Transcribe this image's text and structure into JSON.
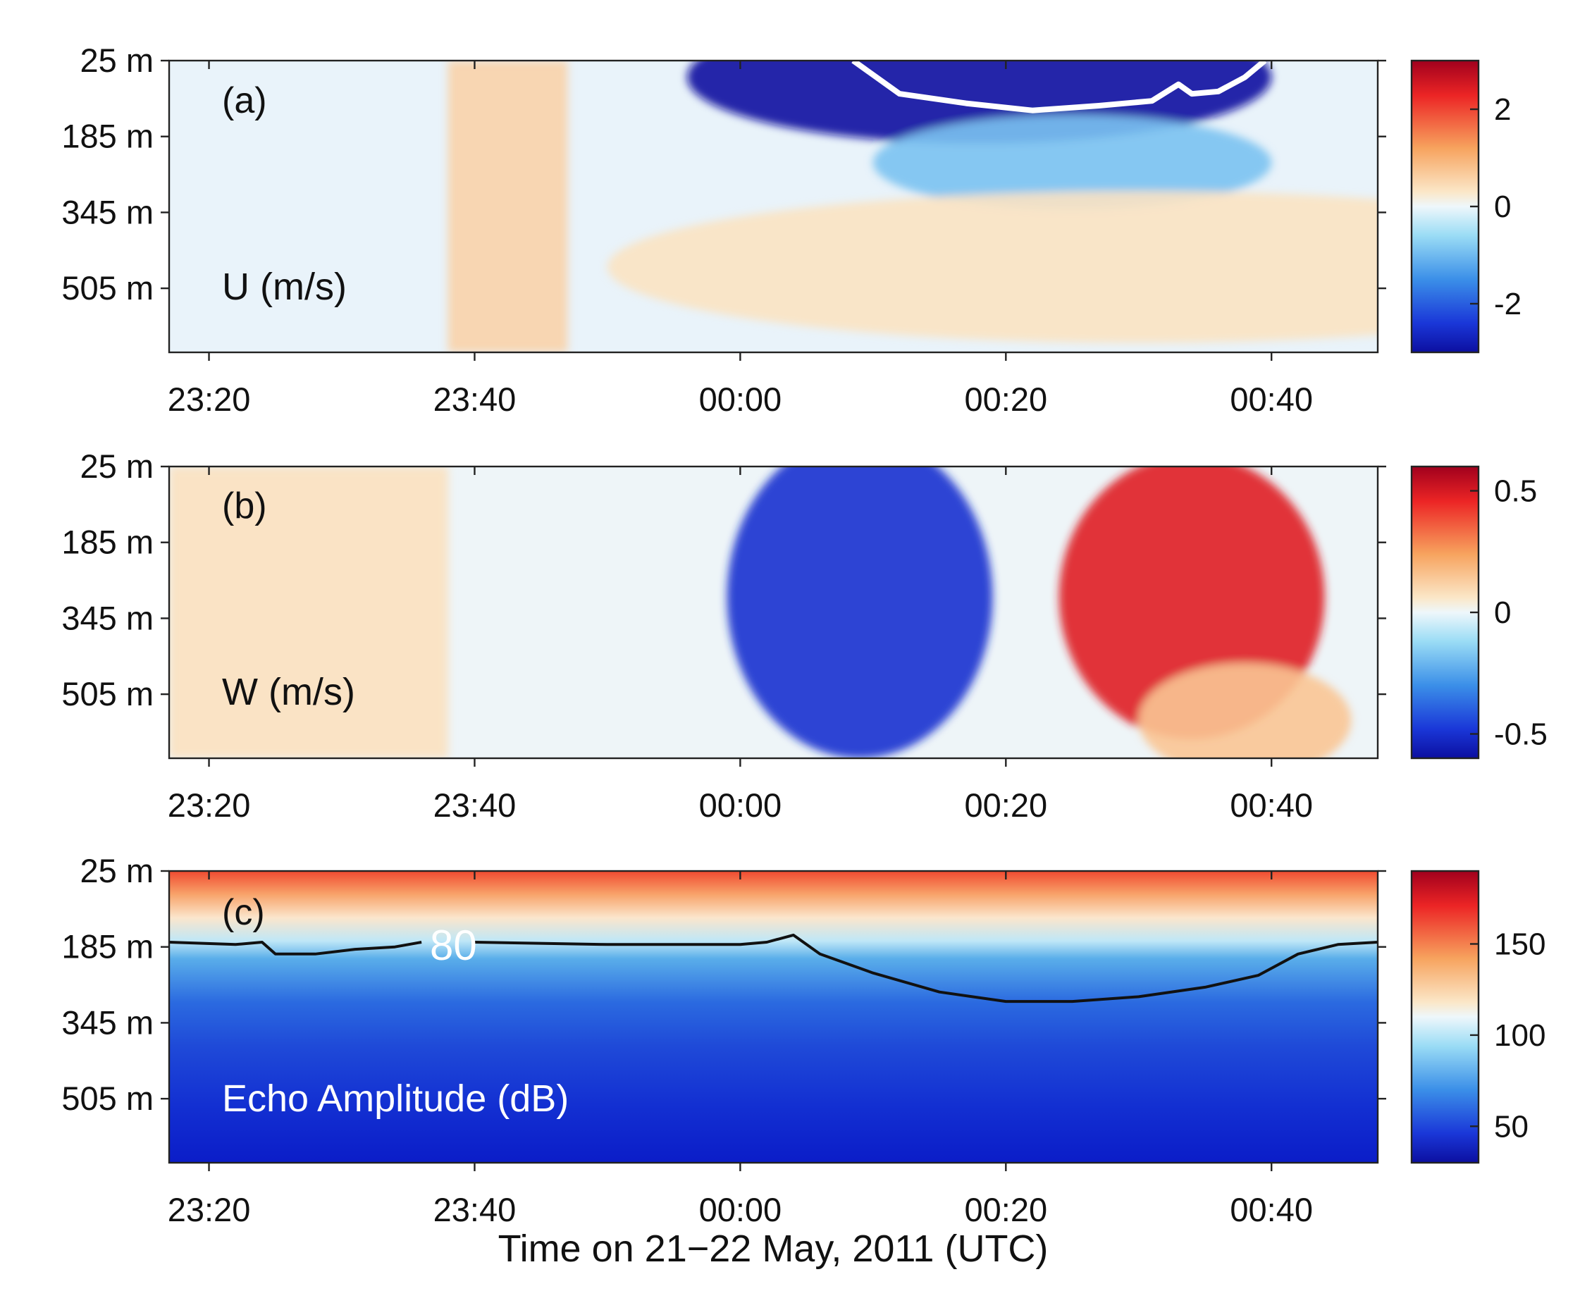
{
  "chart_data": {
    "type": "heatmap",
    "xlabel": "Time on 21−22 May, 2011 (UTC)",
    "x_ticks": [
      "23:20",
      "23:40",
      "00:00",
      "00:20",
      "00:40"
    ],
    "x_tick_minutes": [
      -40,
      -20,
      0,
      20,
      40
    ],
    "xlim_minutes": [
      -43,
      48
    ],
    "y_ticks": [
      "25 m",
      "185 m",
      "345 m",
      "505 m"
    ],
    "y_tick_values": [
      25,
      185,
      345,
      505
    ],
    "ylim": [
      25,
      640
    ],
    "panels": [
      {
        "tag": "(a)",
        "variable_label": "U (m/s)",
        "colormap": "blue-white-red",
        "clim": [
          -3,
          3
        ],
        "colorbar_ticks": [
          "2",
          "0",
          "-2"
        ],
        "colorbar_tick_values": [
          2,
          0,
          -2
        ],
        "contour_color": "#ffffff",
        "contour_value": -2,
        "contour_label": "",
        "features": [
          {
            "kind": "band",
            "t_start": -22,
            "t_end": -13,
            "value": 0.6
          },
          {
            "kind": "blob",
            "t_center": 18,
            "depth_center": 60,
            "t_halfwidth": 22,
            "depth_halfwidth": 140,
            "value": -3.2
          },
          {
            "kind": "blob",
            "t_center": 25,
            "depth_center": 240,
            "t_halfwidth": 15,
            "depth_halfwidth": 100,
            "value": -0.9
          },
          {
            "kind": "blob",
            "t_center": 30,
            "depth_center": 460,
            "t_halfwidth": 40,
            "depth_halfwidth": 160,
            "value": 0.35
          }
        ],
        "contour_points": [
          {
            "t": 8.5,
            "depth": 25
          },
          {
            "t": 12,
            "depth": 95
          },
          {
            "t": 17,
            "depth": 115
          },
          {
            "t": 22,
            "depth": 130
          },
          {
            "t": 27,
            "depth": 120
          },
          {
            "t": 31,
            "depth": 110
          },
          {
            "t": 33,
            "depth": 75
          },
          {
            "t": 34,
            "depth": 95
          },
          {
            "t": 36,
            "depth": 90
          },
          {
            "t": 38,
            "depth": 60
          },
          {
            "t": 39.5,
            "depth": 25
          }
        ]
      },
      {
        "tag": "(b)",
        "variable_label": "W (m/s)",
        "colormap": "blue-white-red",
        "clim": [
          -0.6,
          0.6
        ],
        "colorbar_ticks": [
          "0.5",
          "0",
          "-0.5"
        ],
        "colorbar_tick_values": [
          0.5,
          0,
          -0.5
        ],
        "features": [
          {
            "kind": "band",
            "t_start": -43,
            "t_end": -22,
            "value": 0.08
          },
          {
            "kind": "blob",
            "t_center": 9,
            "depth_center": 300,
            "t_halfwidth": 10,
            "depth_halfwidth": 340,
            "value": -0.5
          },
          {
            "kind": "blob",
            "t_center": 34,
            "depth_center": 300,
            "t_halfwidth": 10,
            "depth_halfwidth": 300,
            "value": 0.48
          },
          {
            "kind": "blob",
            "t_center": 38,
            "depth_center": 560,
            "t_halfwidth": 8,
            "depth_halfwidth": 120,
            "value": 0.15
          }
        ]
      },
      {
        "tag": "(c)",
        "variable_label": "Echo Amplitude (dB)",
        "colormap": "blue-white-red",
        "clim": [
          30,
          190
        ],
        "colorbar_ticks": [
          "150",
          "100",
          "50"
        ],
        "colorbar_tick_values": [
          150,
          100,
          50
        ],
        "contour_color": "#111111",
        "contour_value": 80,
        "contour_label": "80",
        "features": [],
        "contour_points": [
          {
            "t": -43,
            "depth": 175
          },
          {
            "t": -38,
            "depth": 180
          },
          {
            "t": -36,
            "depth": 175
          },
          {
            "t": -35,
            "depth": 200
          },
          {
            "t": -32,
            "depth": 200
          },
          {
            "t": -29,
            "depth": 190
          },
          {
            "t": -26,
            "depth": 185
          },
          {
            "t": -24,
            "depth": 175
          },
          {
            "t": -20,
            "depth": 175
          },
          {
            "t": -10,
            "depth": 180
          },
          {
            "t": 0,
            "depth": 180
          },
          {
            "t": 2,
            "depth": 175
          },
          {
            "t": 4,
            "depth": 160
          },
          {
            "t": 6,
            "depth": 200
          },
          {
            "t": 10,
            "depth": 240
          },
          {
            "t": 15,
            "depth": 280
          },
          {
            "t": 20,
            "depth": 300
          },
          {
            "t": 25,
            "depth": 300
          },
          {
            "t": 30,
            "depth": 290
          },
          {
            "t": 35,
            "depth": 270
          },
          {
            "t": 39,
            "depth": 245
          },
          {
            "t": 42,
            "depth": 200
          },
          {
            "t": 45,
            "depth": 180
          },
          {
            "t": 48,
            "depth": 175
          }
        ],
        "contour_gap_minutes": [
          -24,
          -20
        ]
      }
    ]
  }
}
